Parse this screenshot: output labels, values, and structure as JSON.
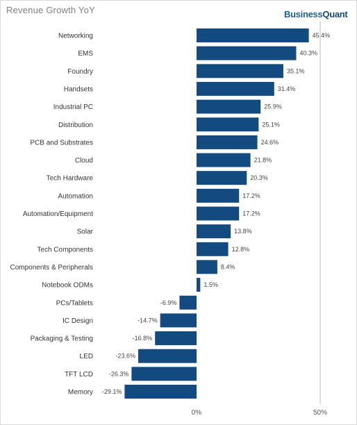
{
  "page_title": "Revenue Growth YoY",
  "brand": {
    "name_part1": "Business",
    "name_part2": "Quant"
  },
  "colors": {
    "bar": "#134b80",
    "axis_line": "#bfbfbf",
    "title": "#7f7f7f"
  },
  "chart_data": {
    "type": "bar",
    "orientation": "horizontal",
    "title": "Revenue Growth YoY",
    "categories": [
      "Networking",
      "EMS",
      "Foundry",
      "Handsets",
      "Industrial PC",
      "Distribution",
      "PCB and Substrates",
      "Cloud",
      "Tech Hardware",
      "Automation",
      "Automation/Equipment",
      "Solar",
      "Tech Components",
      "Components & Peripherals",
      "Notebook ODMs",
      "PCs/Tablets",
      "IC Design",
      "Packaging & Testing",
      "LED",
      "TFT LCD",
      "Memory"
    ],
    "values": [
      45.4,
      40.3,
      35.1,
      31.4,
      25.9,
      25.1,
      24.6,
      21.8,
      20.3,
      17.2,
      17.2,
      13.8,
      12.8,
      8.4,
      1.5,
      -6.9,
      -14.7,
      -16.8,
      -23.6,
      -26.3,
      -29.1
    ],
    "value_labels": [
      "45.4%",
      "40.3%",
      "35.1%",
      "31.4%",
      "25.9%",
      "25.1%",
      "24.6%",
      "21.8%",
      "20.3%",
      "17.2%",
      "17.2%",
      "13.8%",
      "12.8%",
      "8.4%",
      "1.5%",
      "-6.9%",
      "-14.7%",
      "-16.8%",
      "-23.6%",
      "-26.3%",
      "-29.1%"
    ],
    "x_ticks": [
      0,
      50
    ],
    "x_tick_labels": [
      "0%",
      "50%"
    ],
    "xlim": [
      -33,
      50
    ],
    "grid": false,
    "legend": false
  }
}
